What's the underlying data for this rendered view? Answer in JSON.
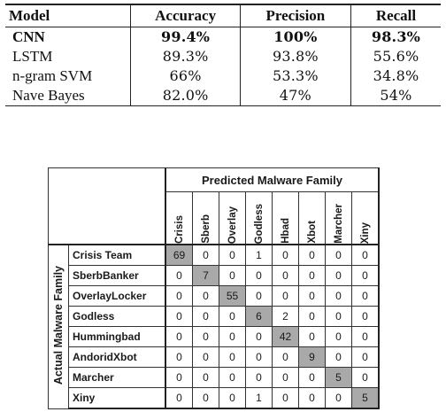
{
  "results_table": {
    "headers": [
      "Model",
      "Accuracy",
      "Precision",
      "Recall"
    ],
    "rows": [
      {
        "model": "CNN",
        "accuracy": "99.4%",
        "precision": "100%",
        "recall": "98.3%",
        "bold": true
      },
      {
        "model": "LSTM",
        "accuracy": "89.3%",
        "precision": "93.8%",
        "recall": "55.6%",
        "bold": false
      },
      {
        "model": "n-gram SVM",
        "accuracy": "66%",
        "precision": "53.3%",
        "recall": "34.8%",
        "bold": false
      },
      {
        "model": "Nave Bayes",
        "accuracy": "82.0%",
        "precision": "47%",
        "recall": "54%",
        "bold": false
      }
    ]
  },
  "confusion_matrix": {
    "predicted_label": "Predicted Malware Family",
    "actual_label": "Actual Malware Family",
    "columns": [
      "Crisis",
      "Sberb",
      "Overlay",
      "Godless",
      "Hbad",
      "Xbot",
      "Marcher",
      "Xiny"
    ],
    "rows": [
      {
        "label": "Crisis Team",
        "values": [
          "69",
          "0",
          "0",
          "1",
          "0",
          "0",
          "0",
          "0"
        ]
      },
      {
        "label": "SberbBanker",
        "values": [
          "0",
          "7",
          "0",
          "0",
          "0",
          "0",
          "0",
          "0"
        ]
      },
      {
        "label": "OverlayLocker",
        "values": [
          "0",
          "0",
          "55",
          "0",
          "0",
          "0",
          "0",
          "0"
        ]
      },
      {
        "label": "Godless",
        "values": [
          "0",
          "0",
          "0",
          "6",
          "2",
          "0",
          "0",
          "0"
        ]
      },
      {
        "label": "Hummingbad",
        "values": [
          "0",
          "0",
          "0",
          "0",
          "42",
          "0",
          "0",
          "0"
        ]
      },
      {
        "label": "AndoridXbot",
        "values": [
          "0",
          "0",
          "0",
          "0",
          "0",
          "9",
          "0",
          "0"
        ]
      },
      {
        "label": "Marcher",
        "values": [
          "0",
          "0",
          "0",
          "0",
          "0",
          "0",
          "5",
          "0"
        ]
      },
      {
        "label": "Xiny",
        "values": [
          "0",
          "0",
          "0",
          "1",
          "0",
          "0",
          "0",
          "5"
        ]
      }
    ],
    "diagonal_highlight_color": "#a9a9a9"
  }
}
